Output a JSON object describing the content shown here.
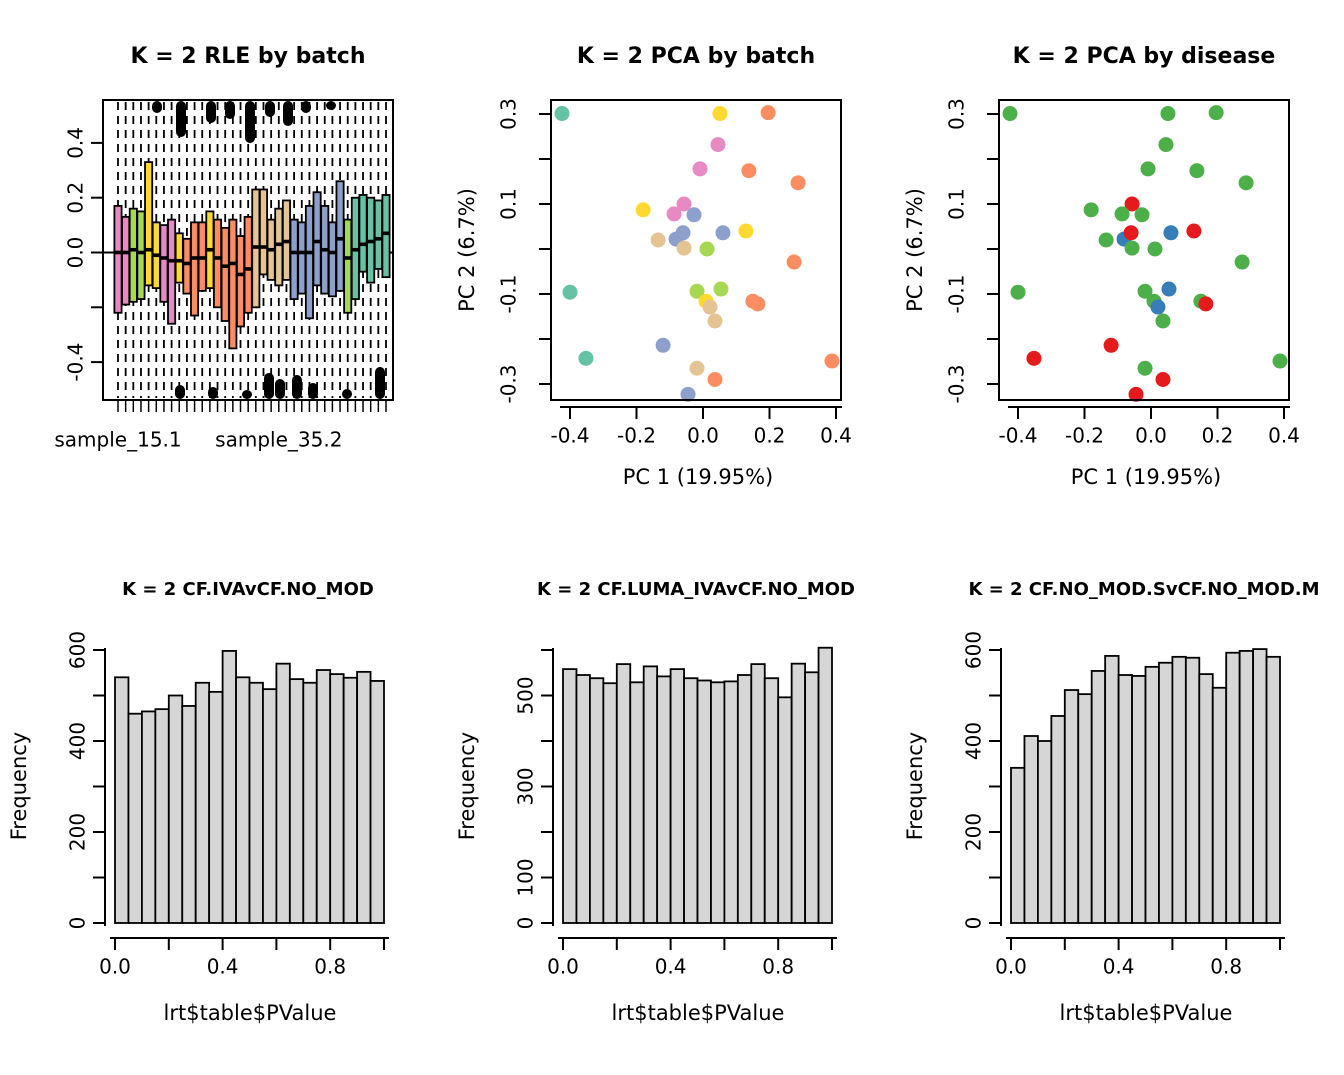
{
  "figure": {
    "background": "#ffffff",
    "rows": 2,
    "cols": 3
  },
  "palette": {
    "set2_teal": "#66C2A5",
    "set2_orange": "#FC8D62",
    "set2_blue": "#8DA0CB",
    "set2_pink": "#E78AC3",
    "set2_green": "#A6D854",
    "set2_yellow": "#FFD92F",
    "set2_tan": "#E5C494",
    "disease_green": "#4DAF4A",
    "disease_red": "#E41A1C",
    "disease_blue": "#377EB8",
    "hist_bar_fill": "#d6d6d6",
    "stroke": "#000000"
  },
  "chart_data": [
    {
      "id": "rle-boxplot",
      "type": "boxplot",
      "title": "K = 2 RLE by batch",
      "xlabel": "",
      "ylabel": "",
      "ylim_visible": [
        -0.54,
        0.56
      ],
      "yticks": [
        {
          "v": 0.4,
          "label": "0.4"
        },
        {
          "v": 0.2,
          "label": "0.2"
        },
        {
          "v": 0.0,
          "label": "0.0"
        },
        {
          "v": -0.2,
          "label": ""
        },
        {
          "v": -0.4,
          "label": "-0.4"
        }
      ],
      "x_tick_labels": [
        {
          "box_index": 1,
          "label": "sample_15.1"
        },
        {
          "box_index": 22,
          "label": "sample_35.2"
        }
      ],
      "zero_line": true,
      "whisker_style": "dashed-full-height",
      "boxes": [
        {
          "med": 0.0,
          "q1": -0.22,
          "q3": 0.17,
          "color": "#E78AC3"
        },
        {
          "med": 0.0,
          "q1": -0.19,
          "q3": 0.13,
          "color": "#E78AC3"
        },
        {
          "med": 0.01,
          "q1": -0.18,
          "q3": 0.16,
          "color": "#A6D854"
        },
        {
          "med": 0.0,
          "q1": -0.17,
          "q3": 0.15,
          "color": "#A6D854"
        },
        {
          "med": 0.01,
          "q1": -0.12,
          "q3": 0.33,
          "color": "#FFD92F"
        },
        {
          "med": -0.01,
          "q1": -0.13,
          "q3": 0.11,
          "color": "#FFD92F"
        },
        {
          "med": -0.02,
          "q1": -0.18,
          "q3": 0.1,
          "color": "#E78AC3"
        },
        {
          "med": -0.03,
          "q1": -0.26,
          "q3": 0.12,
          "color": "#E78AC3"
        },
        {
          "med": -0.03,
          "q1": -0.11,
          "q3": 0.07,
          "color": "#FFD92F"
        },
        {
          "med": -0.04,
          "q1": -0.15,
          "q3": 0.05,
          "color": "#FC8D62"
        },
        {
          "med": -0.02,
          "q1": -0.23,
          "q3": 0.11,
          "color": "#FC8D62"
        },
        {
          "med": -0.02,
          "q1": -0.14,
          "q3": 0.11,
          "color": "#FC8D62"
        },
        {
          "med": 0.01,
          "q1": -0.13,
          "q3": 0.15,
          "color": "#FFD92F"
        },
        {
          "med": -0.02,
          "q1": -0.2,
          "q3": 0.12,
          "color": "#FC8D62"
        },
        {
          "med": -0.05,
          "q1": -0.25,
          "q3": 0.09,
          "color": "#FC8D62"
        },
        {
          "med": -0.04,
          "q1": -0.35,
          "q3": 0.12,
          "color": "#FC8D62"
        },
        {
          "med": -0.08,
          "q1": -0.27,
          "q3": 0.06,
          "color": "#FC8D62"
        },
        {
          "med": -0.06,
          "q1": -0.22,
          "q3": 0.13,
          "color": "#FC8D62"
        },
        {
          "med": 0.02,
          "q1": -0.2,
          "q3": 0.23,
          "color": "#E5C494"
        },
        {
          "med": 0.02,
          "q1": -0.08,
          "q3": 0.23,
          "color": "#E5C494"
        },
        {
          "med": 0.01,
          "q1": -0.1,
          "q3": 0.12,
          "color": "#E5C494"
        },
        {
          "med": 0.03,
          "q1": -0.12,
          "q3": 0.16,
          "color": "#E5C494"
        },
        {
          "med": 0.04,
          "q1": -0.1,
          "q3": 0.19,
          "color": "#E5C494"
        },
        {
          "med": 0.0,
          "q1": -0.17,
          "q3": 0.12,
          "color": "#8DA0CB"
        },
        {
          "med": 0.0,
          "q1": -0.15,
          "q3": 0.11,
          "color": "#8DA0CB"
        },
        {
          "med": 0.0,
          "q1": -0.24,
          "q3": 0.17,
          "color": "#8DA0CB"
        },
        {
          "med": 0.04,
          "q1": -0.12,
          "q3": 0.22,
          "color": "#8DA0CB"
        },
        {
          "med": 0.01,
          "q1": -0.15,
          "q3": 0.17,
          "color": "#8DA0CB"
        },
        {
          "med": 0.0,
          "q1": -0.16,
          "q3": 0.11,
          "color": "#8DA0CB"
        },
        {
          "med": 0.05,
          "q1": -0.14,
          "q3": 0.26,
          "color": "#8DA0CB"
        },
        {
          "med": -0.02,
          "q1": -0.22,
          "q3": 0.12,
          "color": "#A6D854"
        },
        {
          "med": 0.01,
          "q1": -0.17,
          "q3": 0.2,
          "color": "#66C2A5"
        },
        {
          "med": 0.03,
          "q1": -0.07,
          "q3": 0.21,
          "color": "#66C2A5"
        },
        {
          "med": 0.04,
          "q1": -0.11,
          "q3": 0.2,
          "color": "#66C2A5"
        },
        {
          "med": 0.05,
          "q1": -0.06,
          "q3": 0.19,
          "color": "#66C2A5"
        },
        {
          "med": 0.07,
          "q1": -0.09,
          "q3": 0.21,
          "color": "#66C2A5"
        }
      ],
      "outlier_blobs_top": [
        {
          "x": 157,
          "h": 12
        },
        {
          "x": 181,
          "h": 36
        },
        {
          "x": 211,
          "h": 22
        },
        {
          "x": 230,
          "h": 18
        },
        {
          "x": 250,
          "h": 42
        },
        {
          "x": 270,
          "h": 16
        },
        {
          "x": 288,
          "h": 25
        },
        {
          "x": 306,
          "h": 12
        },
        {
          "x": 331,
          "h": 9
        }
      ],
      "outlier_blobs_bottom": [
        {
          "x": 180,
          "h": 14
        },
        {
          "x": 213,
          "h": 12
        },
        {
          "x": 247,
          "h": 9
        },
        {
          "x": 269,
          "h": 26
        },
        {
          "x": 280,
          "h": 20
        },
        {
          "x": 297,
          "h": 24
        },
        {
          "x": 313,
          "h": 16
        },
        {
          "x": 347,
          "h": 10
        },
        {
          "x": 380,
          "h": 32
        }
      ]
    },
    {
      "id": "pca-batch",
      "type": "scatter",
      "title": "K = 2 PCA by batch",
      "xlabel": "PC 1 (19.95%)",
      "ylabel": "PC 2 (6.7%)",
      "xlim": [
        -0.457,
        0.418
      ],
      "ylim": [
        -0.336,
        0.331
      ],
      "xticks": [
        {
          "v": -0.4,
          "label": "-0.4"
        },
        {
          "v": -0.2,
          "label": "-0.2"
        },
        {
          "v": 0.0,
          "label": "0.0"
        },
        {
          "v": 0.2,
          "label": "0.2"
        },
        {
          "v": 0.4,
          "label": "0.4"
        }
      ],
      "yticks": [
        {
          "v": 0.3,
          "label": "0.3"
        },
        {
          "v": 0.2,
          "label": ""
        },
        {
          "v": 0.1,
          "label": "0.1"
        },
        {
          "v": 0.0,
          "label": ""
        },
        {
          "v": -0.1,
          "label": "-0.1"
        },
        {
          "v": -0.2,
          "label": ""
        },
        {
          "v": -0.3,
          "label": "-0.3"
        }
      ],
      "points": [
        {
          "x": -0.424,
          "y": 0.301,
          "color": "#66C2A5"
        },
        {
          "x": 0.051,
          "y": 0.301,
          "color": "#FFD92F"
        },
        {
          "x": 0.196,
          "y": 0.303,
          "color": "#FC8D62"
        },
        {
          "x": 0.045,
          "y": 0.232,
          "color": "#E78AC3"
        },
        {
          "x": -0.009,
          "y": 0.178,
          "color": "#E78AC3"
        },
        {
          "x": 0.138,
          "y": 0.174,
          "color": "#FC8D62"
        },
        {
          "x": 0.286,
          "y": 0.147,
          "color": "#FC8D62"
        },
        {
          "x": -0.18,
          "y": 0.087,
          "color": "#FFD92F"
        },
        {
          "x": -0.057,
          "y": 0.1,
          "color": "#E78AC3"
        },
        {
          "x": -0.087,
          "y": 0.078,
          "color": "#E78AC3"
        },
        {
          "x": -0.027,
          "y": 0.076,
          "color": "#8DA0CB"
        },
        {
          "x": -0.135,
          "y": 0.02,
          "color": "#E5C494"
        },
        {
          "x": -0.081,
          "y": 0.022,
          "color": "#8DA0CB"
        },
        {
          "x": -0.06,
          "y": 0.036,
          "color": "#8DA0CB"
        },
        {
          "x": -0.057,
          "y": 0.002,
          "color": "#E5C494"
        },
        {
          "x": 0.012,
          "y": 0.0,
          "color": "#A6D854"
        },
        {
          "x": 0.06,
          "y": 0.036,
          "color": "#8DA0CB"
        },
        {
          "x": 0.129,
          "y": 0.04,
          "color": "#FFD92F"
        },
        {
          "x": 0.274,
          "y": -0.029,
          "color": "#FC8D62"
        },
        {
          "x": -0.018,
          "y": -0.094,
          "color": "#A6D854"
        },
        {
          "x": 0.054,
          "y": -0.089,
          "color": "#A6D854"
        },
        {
          "x": -0.4,
          "y": -0.096,
          "color": "#66C2A5"
        },
        {
          "x": 0.009,
          "y": -0.116,
          "color": "#FFD92F"
        },
        {
          "x": 0.021,
          "y": -0.129,
          "color": "#E5C494"
        },
        {
          "x": 0.036,
          "y": -0.16,
          "color": "#E5C494"
        },
        {
          "x": 0.15,
          "y": -0.116,
          "color": "#FC8D62"
        },
        {
          "x": 0.165,
          "y": -0.122,
          "color": "#FC8D62"
        },
        {
          "x": -0.12,
          "y": -0.214,
          "color": "#8DA0CB"
        },
        {
          "x": -0.352,
          "y": -0.243,
          "color": "#66C2A5"
        },
        {
          "x": -0.018,
          "y": -0.265,
          "color": "#E5C494"
        },
        {
          "x": 0.036,
          "y": -0.29,
          "color": "#FC8D62"
        },
        {
          "x": 0.388,
          "y": -0.249,
          "color": "#FC8D62"
        },
        {
          "x": -0.045,
          "y": -0.323,
          "color": "#8DA0CB"
        }
      ]
    },
    {
      "id": "pca-disease",
      "type": "scatter",
      "title": "K = 2 PCA by disease",
      "xlabel": "PC 1 (19.95%)",
      "ylabel": "PC 2 (6.7%)",
      "xlim": [
        -0.457,
        0.418
      ],
      "ylim": [
        -0.336,
        0.331
      ],
      "xticks": [
        {
          "v": -0.4,
          "label": "-0.4"
        },
        {
          "v": -0.2,
          "label": "-0.2"
        },
        {
          "v": 0.0,
          "label": "0.0"
        },
        {
          "v": 0.2,
          "label": "0.2"
        },
        {
          "v": 0.4,
          "label": "0.4"
        }
      ],
      "yticks": [
        {
          "v": 0.3,
          "label": "0.3"
        },
        {
          "v": 0.2,
          "label": ""
        },
        {
          "v": 0.1,
          "label": "0.1"
        },
        {
          "v": 0.0,
          "label": ""
        },
        {
          "v": -0.1,
          "label": "-0.1"
        },
        {
          "v": -0.2,
          "label": ""
        },
        {
          "v": -0.3,
          "label": "-0.3"
        }
      ],
      "points": [
        {
          "x": -0.424,
          "y": 0.301,
          "color": "#4DAF4A"
        },
        {
          "x": 0.051,
          "y": 0.301,
          "color": "#4DAF4A"
        },
        {
          "x": 0.196,
          "y": 0.303,
          "color": "#4DAF4A"
        },
        {
          "x": 0.045,
          "y": 0.232,
          "color": "#4DAF4A"
        },
        {
          "x": -0.009,
          "y": 0.178,
          "color": "#4DAF4A"
        },
        {
          "x": 0.138,
          "y": 0.174,
          "color": "#4DAF4A"
        },
        {
          "x": 0.286,
          "y": 0.147,
          "color": "#4DAF4A"
        },
        {
          "x": -0.18,
          "y": 0.087,
          "color": "#4DAF4A"
        },
        {
          "x": -0.057,
          "y": 0.1,
          "color": "#E41A1C"
        },
        {
          "x": -0.087,
          "y": 0.078,
          "color": "#4DAF4A"
        },
        {
          "x": -0.027,
          "y": 0.076,
          "color": "#4DAF4A"
        },
        {
          "x": -0.135,
          "y": 0.02,
          "color": "#4DAF4A"
        },
        {
          "x": -0.081,
          "y": 0.022,
          "color": "#377EB8"
        },
        {
          "x": -0.06,
          "y": 0.036,
          "color": "#E41A1C"
        },
        {
          "x": -0.057,
          "y": 0.002,
          "color": "#4DAF4A"
        },
        {
          "x": 0.012,
          "y": 0.0,
          "color": "#4DAF4A"
        },
        {
          "x": 0.06,
          "y": 0.036,
          "color": "#377EB8"
        },
        {
          "x": 0.129,
          "y": 0.04,
          "color": "#E41A1C"
        },
        {
          "x": 0.274,
          "y": -0.029,
          "color": "#4DAF4A"
        },
        {
          "x": -0.018,
          "y": -0.094,
          "color": "#4DAF4A"
        },
        {
          "x": 0.054,
          "y": -0.089,
          "color": "#377EB8"
        },
        {
          "x": -0.4,
          "y": -0.096,
          "color": "#4DAF4A"
        },
        {
          "x": 0.009,
          "y": -0.116,
          "color": "#4DAF4A"
        },
        {
          "x": 0.021,
          "y": -0.129,
          "color": "#377EB8"
        },
        {
          "x": 0.036,
          "y": -0.16,
          "color": "#4DAF4A"
        },
        {
          "x": 0.15,
          "y": -0.116,
          "color": "#4DAF4A"
        },
        {
          "x": 0.165,
          "y": -0.122,
          "color": "#E41A1C"
        },
        {
          "x": -0.12,
          "y": -0.214,
          "color": "#E41A1C"
        },
        {
          "x": -0.352,
          "y": -0.243,
          "color": "#E41A1C"
        },
        {
          "x": -0.018,
          "y": -0.265,
          "color": "#4DAF4A"
        },
        {
          "x": 0.036,
          "y": -0.29,
          "color": "#E41A1C"
        },
        {
          "x": 0.388,
          "y": -0.249,
          "color": "#4DAF4A"
        },
        {
          "x": -0.045,
          "y": -0.323,
          "color": "#E41A1C"
        }
      ]
    },
    {
      "id": "hist-cf-iva",
      "type": "histogram",
      "title": "K = 2 CF.IVAvCF.NO_MOD",
      "xlabel": "lrt$table$PValue",
      "ylabel": "Frequency",
      "bin_start": 0.0,
      "bin_width": 0.05,
      "ylim": [
        0,
        600
      ],
      "counts": [
        540,
        460,
        465,
        470,
        500,
        477,
        528,
        508,
        598,
        540,
        528,
        514,
        570,
        536,
        528,
        556,
        547,
        539,
        552,
        532
      ],
      "yticks": [
        {
          "v": 0,
          "label": "0"
        },
        {
          "v": 100,
          "label": ""
        },
        {
          "v": 200,
          "label": "200"
        },
        {
          "v": 300,
          "label": ""
        },
        {
          "v": 400,
          "label": "400"
        },
        {
          "v": 500,
          "label": ""
        },
        {
          "v": 600,
          "label": "600"
        }
      ],
      "xticks": [
        {
          "v": 0.0,
          "label": "0.0"
        },
        {
          "v": 0.2,
          "label": ""
        },
        {
          "v": 0.4,
          "label": "0.4"
        },
        {
          "v": 0.6,
          "label": ""
        },
        {
          "v": 0.8,
          "label": "0.8"
        },
        {
          "v": 1.0,
          "label": ""
        }
      ],
      "bar_fill": "#d6d6d6"
    },
    {
      "id": "hist-cf-luma",
      "type": "histogram",
      "title": "K = 2 CF.LUMA_IVAvCF.NO_MOD",
      "xlabel": "lrt$table$PValue",
      "ylabel": "Frequency",
      "bin_start": 0.0,
      "bin_width": 0.05,
      "ylim": [
        0,
        600
      ],
      "counts": [
        558,
        545,
        538,
        527,
        569,
        529,
        564,
        542,
        558,
        538,
        533,
        529,
        531,
        545,
        569,
        538,
        496,
        570,
        551,
        605
      ],
      "yticks": [
        {
          "v": 0,
          "label": "0"
        },
        {
          "v": 100,
          "label": "100"
        },
        {
          "v": 200,
          "label": ""
        },
        {
          "v": 300,
          "label": "300"
        },
        {
          "v": 400,
          "label": ""
        },
        {
          "v": 500,
          "label": "500"
        },
        {
          "v": 600,
          "label": ""
        }
      ],
      "xticks": [
        {
          "v": 0.0,
          "label": "0.0"
        },
        {
          "v": 0.2,
          "label": ""
        },
        {
          "v": 0.4,
          "label": "0.4"
        },
        {
          "v": 0.6,
          "label": ""
        },
        {
          "v": 0.8,
          "label": "0.8"
        },
        {
          "v": 1.0,
          "label": ""
        }
      ],
      "bar_fill": "#d6d6d6"
    },
    {
      "id": "hist-cf-nomod",
      "type": "histogram",
      "title": "K = 2 CF.NO_MOD.SvCF.NO_MOD.M",
      "xlabel": "lrt$table$PValue",
      "ylabel": "Frequency",
      "bin_start": 0.0,
      "bin_width": 0.05,
      "ylim": [
        0,
        600
      ],
      "counts": [
        341,
        411,
        400,
        455,
        512,
        503,
        554,
        587,
        545,
        543,
        563,
        572,
        585,
        583,
        547,
        517,
        594,
        598,
        602,
        585
      ],
      "yticks": [
        {
          "v": 0,
          "label": "0"
        },
        {
          "v": 100,
          "label": ""
        },
        {
          "v": 200,
          "label": "200"
        },
        {
          "v": 300,
          "label": ""
        },
        {
          "v": 400,
          "label": "400"
        },
        {
          "v": 500,
          "label": ""
        },
        {
          "v": 600,
          "label": "600"
        }
      ],
      "xticks": [
        {
          "v": 0.0,
          "label": "0.0"
        },
        {
          "v": 0.2,
          "label": ""
        },
        {
          "v": 0.4,
          "label": "0.4"
        },
        {
          "v": 0.6,
          "label": ""
        },
        {
          "v": 0.8,
          "label": "0.8"
        },
        {
          "v": 1.0,
          "label": ""
        }
      ],
      "bar_fill": "#d6d6d6"
    }
  ]
}
